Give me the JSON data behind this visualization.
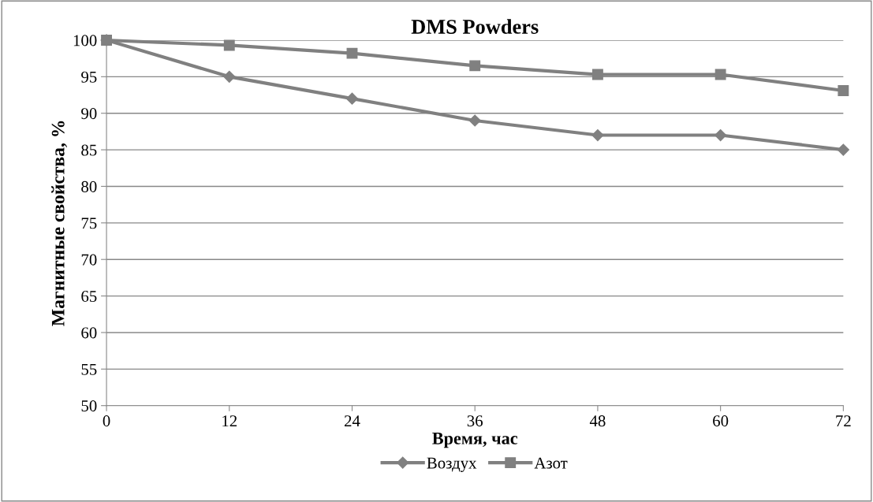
{
  "chart_data": {
    "type": "line",
    "title": "DMS Powders",
    "xlabel": "Время, час",
    "ylabel": "Магнитные свойства, %",
    "x": [
      0,
      12,
      24,
      36,
      48,
      60,
      72
    ],
    "series": [
      {
        "name": "Воздух",
        "color": "#808080",
        "marker": "diamond",
        "values": [
          100,
          95,
          92,
          89,
          87,
          87,
          85
        ]
      },
      {
        "name": "Азот",
        "color": "#808080",
        "marker": "square",
        "values": [
          100,
          99.3,
          98.2,
          96.5,
          95.3,
          95.3,
          93.1
        ]
      }
    ],
    "xlim": [
      0,
      72
    ],
    "xticks": [
      0,
      12,
      24,
      36,
      48,
      60,
      72
    ],
    "ylim": [
      50,
      100
    ],
    "yticks": [
      50,
      55,
      60,
      65,
      70,
      75,
      80,
      85,
      90,
      95,
      100
    ],
    "grid": "y",
    "legend": "bottom",
    "line_style": "solid"
  }
}
